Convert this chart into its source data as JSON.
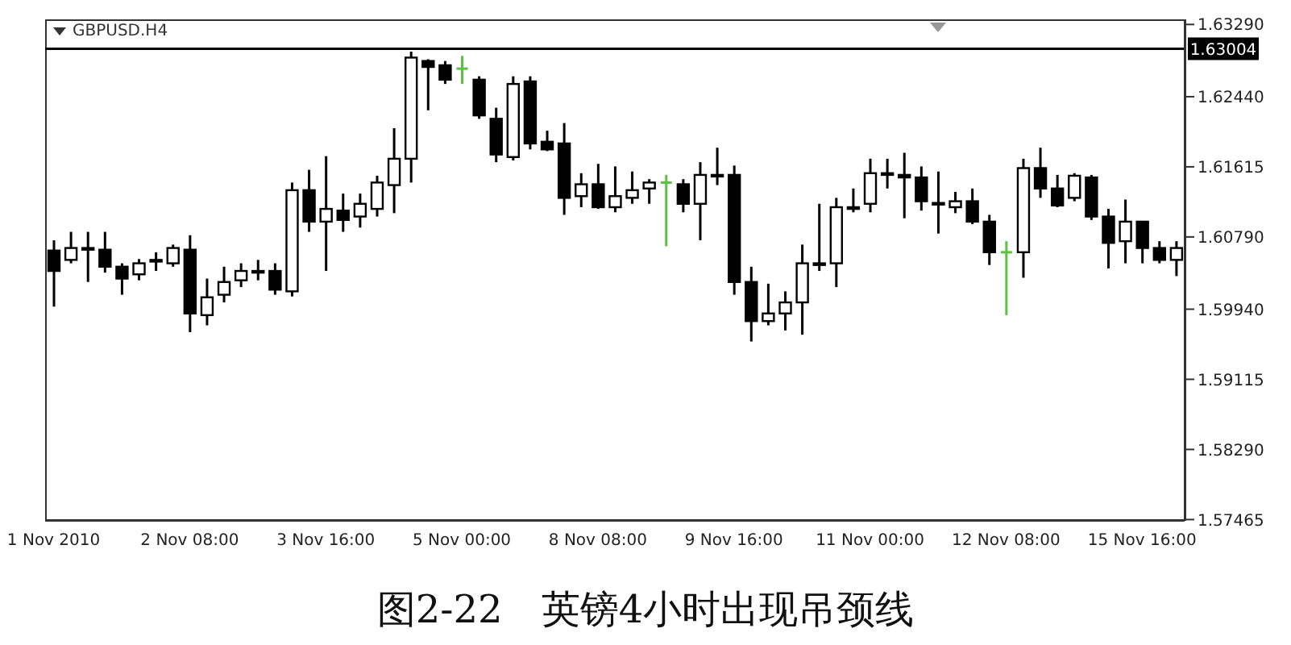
{
  "chart_data": {
    "type": "candlestick",
    "title": "GBPUSD.H4",
    "annotations": [
      "图2-22　英镑4小时出现吊颈线"
    ],
    "categories": [
      "1 Nov 2010",
      null,
      null,
      null,
      null,
      null,
      null,
      null,
      "2 Nov 08:00",
      null,
      null,
      null,
      null,
      null,
      null,
      null,
      "3 Nov 16:00",
      null,
      null,
      null,
      null,
      null,
      null,
      null,
      "5 Nov 00:00",
      null,
      null,
      null,
      null,
      null,
      null,
      null,
      "8 Nov 08:00",
      null,
      null,
      null,
      null,
      null,
      null,
      null,
      "9 Nov 16:00",
      null,
      null,
      null,
      null,
      null,
      null,
      null,
      "11 Nov 00:00",
      null,
      null,
      null,
      null,
      null,
      null,
      null,
      "12 Nov 08:00",
      null,
      null,
      null,
      null,
      null,
      null,
      null,
      "15 Nov 16:00",
      null,
      null
    ],
    "ohlc": [
      [
        1.6063,
        1.6075,
        1.5997,
        1.6039
      ],
      [
        1.6052,
        1.6085,
        1.6048,
        1.6066
      ],
      [
        1.6066,
        1.6085,
        1.6026,
        1.6064
      ],
      [
        1.6064,
        1.6085,
        1.6037,
        1.6044
      ],
      [
        1.6044,
        1.6048,
        1.6011,
        1.603
      ],
      [
        1.6035,
        1.6053,
        1.6028,
        1.6048
      ],
      [
        1.605,
        1.6061,
        1.6039,
        1.6052
      ],
      [
        1.6048,
        1.607,
        1.6044,
        1.6066
      ],
      [
        1.6064,
        1.6081,
        1.5967,
        1.5989
      ],
      [
        1.5987,
        1.603,
        1.5975,
        1.6008
      ],
      [
        1.6011,
        1.6044,
        1.6002,
        1.6026
      ],
      [
        1.6028,
        1.6048,
        1.602,
        1.6039
      ],
      [
        1.6039,
        1.6052,
        1.6028,
        1.6037
      ],
      [
        1.6039,
        1.6048,
        1.6011,
        1.6017
      ],
      [
        1.6015,
        1.6143,
        1.6009,
        1.6134
      ],
      [
        1.6134,
        1.6158,
        1.6085,
        1.6097
      ],
      [
        1.6097,
        1.6174,
        1.6039,
        1.6112
      ],
      [
        1.611,
        1.613,
        1.6085,
        1.6099
      ],
      [
        1.6103,
        1.613,
        1.609,
        1.6118
      ],
      [
        1.6112,
        1.6151,
        1.6103,
        1.6143
      ],
      [
        1.614,
        1.6207,
        1.6107,
        1.6171
      ],
      [
        1.6171,
        1.6297,
        1.6143,
        1.629
      ],
      [
        1.6286,
        1.6288,
        1.6228,
        1.6279
      ],
      [
        1.6281,
        1.6286,
        1.6259,
        1.6264
      ],
      [
        1.6277,
        1.6292,
        1.6259,
        1.6277
      ],
      [
        1.6264,
        1.6268,
        1.6218,
        1.6222
      ],
      [
        1.6218,
        1.6231,
        1.6167,
        1.6176
      ],
      [
        1.6173,
        1.6268,
        1.6169,
        1.6259
      ],
      [
        1.6262,
        1.6268,
        1.6182,
        1.6189
      ],
      [
        1.6191,
        1.6204,
        1.618,
        1.6182
      ],
      [
        1.6189,
        1.6213,
        1.6105,
        1.6125
      ],
      [
        1.6127,
        1.6154,
        1.6114,
        1.6141
      ],
      [
        1.6141,
        1.6165,
        1.6112,
        1.6114
      ],
      [
        1.6114,
        1.6162,
        1.6108,
        1.6127
      ],
      [
        1.6125,
        1.6156,
        1.6118,
        1.6134
      ],
      [
        1.6136,
        1.6147,
        1.6118,
        1.6143
      ],
      [
        1.6143,
        1.6152,
        1.6068,
        1.6143
      ],
      [
        1.6141,
        1.6147,
        1.6108,
        1.6118
      ],
      [
        1.6118,
        1.6167,
        1.6075,
        1.6152
      ],
      [
        1.6152,
        1.6184,
        1.614,
        1.6151
      ],
      [
        1.6152,
        1.6163,
        1.6011,
        1.6026
      ],
      [
        1.6026,
        1.6044,
        1.5956,
        1.598
      ],
      [
        1.598,
        1.6024,
        1.5975,
        1.5989
      ],
      [
        1.5989,
        1.6015,
        1.5969,
        1.6002
      ],
      [
        1.6002,
        1.607,
        1.5964,
        1.6048
      ],
      [
        1.6048,
        1.6118,
        1.6039,
        1.6046
      ],
      [
        1.6048,
        1.6125,
        1.602,
        1.6114
      ],
      [
        1.6114,
        1.6136,
        1.6108,
        1.6112
      ],
      [
        1.6118,
        1.6171,
        1.6108,
        1.6154
      ],
      [
        1.6154,
        1.6171,
        1.6136,
        1.6152
      ],
      [
        1.6152,
        1.6178,
        1.6101,
        1.6149
      ],
      [
        1.6149,
        1.6162,
        1.611,
        1.6121
      ],
      [
        1.6119,
        1.6156,
        1.6083,
        1.6118
      ],
      [
        1.6114,
        1.6132,
        1.6107,
        1.6121
      ],
      [
        1.6121,
        1.6136,
        1.6094,
        1.6097
      ],
      [
        1.6097,
        1.6105,
        1.6046,
        1.6061
      ],
      [
        1.6061,
        1.6074,
        1.5987,
        1.6061
      ],
      [
        1.6061,
        1.6171,
        1.6031,
        1.616
      ],
      [
        1.616,
        1.6184,
        1.6125,
        1.6136
      ],
      [
        1.6136,
        1.6152,
        1.6114,
        1.6116
      ],
      [
        1.6125,
        1.6154,
        1.6121,
        1.6151
      ],
      [
        1.6149,
        1.6152,
        1.6099,
        1.6103
      ],
      [
        1.6103,
        1.6112,
        1.6042,
        1.6072
      ],
      [
        1.6074,
        1.6123,
        1.6048,
        1.6097
      ],
      [
        1.6097,
        1.6097,
        1.6048,
        1.6066
      ],
      [
        1.6066,
        1.6074,
        1.6048,
        1.6052
      ],
      [
        1.6052,
        1.6074,
        1.6033,
        1.6066
      ]
    ],
    "colors": [
      "#000000",
      "#000000",
      "#000000",
      "#000000",
      "#000000",
      "#000000",
      "#000000",
      "#000000",
      "#000000",
      "#000000",
      "#000000",
      "#000000",
      "#000000",
      "#000000",
      "#000000",
      "#000000",
      "#000000",
      "#000000",
      "#000000",
      "#000000",
      "#000000",
      "#000000",
      "#000000",
      "#000000",
      "#5cc040",
      "#000000",
      "#000000",
      "#000000",
      "#000000",
      "#000000",
      "#000000",
      "#000000",
      "#000000",
      "#000000",
      "#000000",
      "#000000",
      "#5cc040",
      "#000000",
      "#000000",
      "#000000",
      "#000000",
      "#000000",
      "#000000",
      "#000000",
      "#000000",
      "#000000",
      "#000000",
      "#000000",
      "#000000",
      "#000000",
      "#000000",
      "#000000",
      "#000000",
      "#000000",
      "#000000",
      "#000000",
      "#5cc040",
      "#000000",
      "#000000",
      "#000000",
      "#000000",
      "#000000",
      "#000000",
      "#000000",
      "#000000",
      "#000000",
      "#000000"
    ],
    "ylim": [
      1.5745,
      1.6335
    ],
    "yticks": [
      {
        "value": 1.57465,
        "label": "1.57465"
      },
      {
        "value": 1.5829,
        "label": "1.58290"
      },
      {
        "value": 1.59115,
        "label": "1.59115"
      },
      {
        "value": 1.5994,
        "label": "1.59940"
      },
      {
        "value": 1.6079,
        "label": "1.60790"
      },
      {
        "value": 1.61615,
        "label": "1.61615"
      },
      {
        "value": 1.6244,
        "label": "1.62440"
      },
      {
        "value": 1.6329,
        "label": "1.63290"
      }
    ],
    "ref_lines": [
      {
        "axis": "y",
        "value": 1.63004,
        "label": "1.63004",
        "color": "#000000"
      }
    ]
  }
}
